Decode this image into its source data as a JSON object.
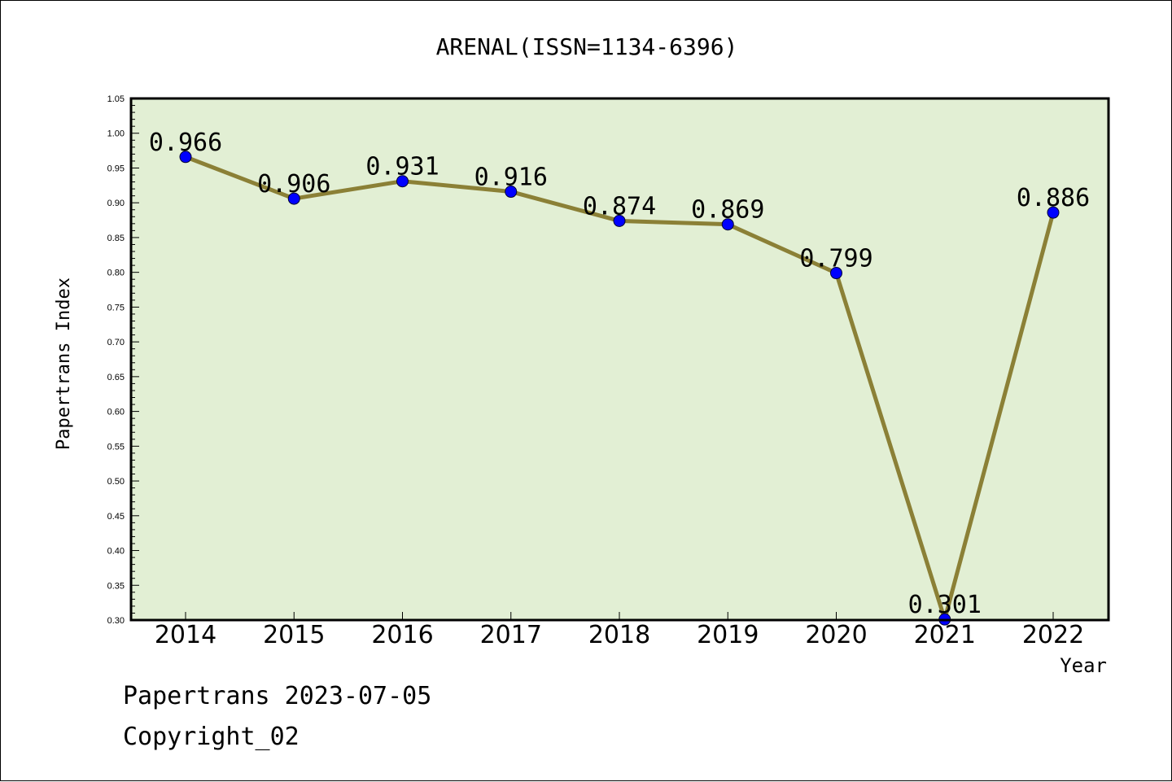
{
  "chart_data": {
    "type": "line",
    "title": "ARENAL(ISSN=1134-6396)",
    "xlabel": "Year",
    "ylabel": "Papertrans Index",
    "categories": [
      "2014",
      "2015",
      "2016",
      "2017",
      "2018",
      "2019",
      "2020",
      "2021",
      "2022"
    ],
    "values": [
      0.966,
      0.906,
      0.931,
      0.916,
      0.874,
      0.869,
      0.799,
      0.301,
      0.886
    ],
    "data_labels": [
      "0.966",
      "0.906",
      "0.931",
      "0.916",
      "0.874",
      "0.869",
      "0.799",
      "0.301",
      "0.886"
    ],
    "ylim": [
      0.3,
      1.05
    ],
    "yticks": [
      "0.30",
      "0.35",
      "0.40",
      "0.45",
      "0.50",
      "0.55",
      "0.60",
      "0.65",
      "0.70",
      "0.75",
      "0.80",
      "0.85",
      "0.90",
      "0.95",
      "1.00",
      "1.05"
    ],
    "grid": false,
    "colors": {
      "plot_bg": "#e2efd4",
      "line": "#8b8036",
      "marker": "#0000ff"
    }
  },
  "footer": {
    "line1": "Papertrans 2023-07-05",
    "line2": "Copyright_02"
  }
}
